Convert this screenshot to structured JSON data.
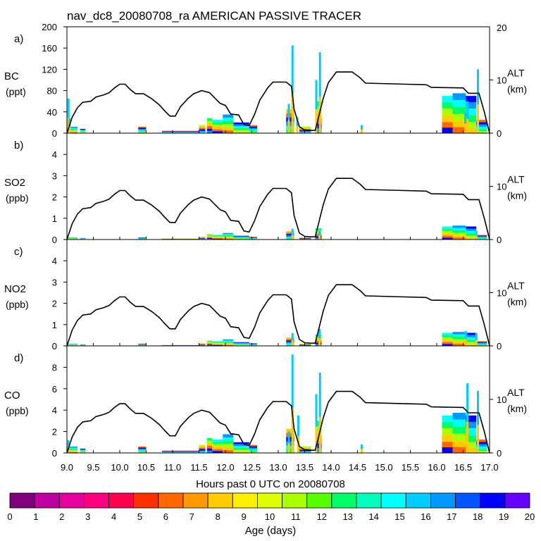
{
  "title": "nav_dc8_20080708_ra AMERICAN PASSIVE TRACER",
  "xlabel": "Hours past 0 UTC on 20080708",
  "x_ticks": [
    "9.0",
    "9.5",
    "10.0",
    "10.5",
    "11.0",
    "11.5",
    "12.0",
    "12.5",
    "13.0",
    "13.5",
    "14.0",
    "14.5",
    "15.0",
    "15.5",
    "16.0",
    "16.5",
    "17.0"
  ],
  "x_range": [
    9.0,
    17.0
  ],
  "colorbar": {
    "label": "Age (days)",
    "ticks": [
      "0",
      "1",
      "2",
      "3",
      "4",
      "5",
      "6",
      "7",
      "8",
      "9",
      "10",
      "11",
      "12",
      "13",
      "14",
      "15",
      "16",
      "17",
      "18",
      "19",
      "20"
    ],
    "colors": [
      "#7f007f",
      "#bf00a0",
      "#e600a0",
      "#ff0080",
      "#ff0050",
      "#ff3000",
      "#ff6600",
      "#ff9900",
      "#ffcc00",
      "#ffee00",
      "#ddff00",
      "#aaff00",
      "#55ff00",
      "#00ff66",
      "#00ffbb",
      "#00ffff",
      "#00ccff",
      "#0099ff",
      "#0055ff",
      "#0000ff",
      "#6600ff"
    ]
  },
  "alt_axis": {
    "label": "ALT",
    "unit": "(km)"
  },
  "altitude_km": [
    [
      9.0,
      0
    ],
    [
      9.05,
      1.5
    ],
    [
      9.1,
      3
    ],
    [
      9.2,
      4.8
    ],
    [
      9.3,
      5.8
    ],
    [
      9.45,
      6
    ],
    [
      9.55,
      6.8
    ],
    [
      9.7,
      7.2
    ],
    [
      9.8,
      7.6
    ],
    [
      9.9,
      8.5
    ],
    [
      10.0,
      9.2
    ],
    [
      10.1,
      9.2
    ],
    [
      10.2,
      8.2
    ],
    [
      10.3,
      7.4
    ],
    [
      10.45,
      7.4
    ],
    [
      10.6,
      6.5
    ],
    [
      10.75,
      5.3
    ],
    [
      10.85,
      4.2
    ],
    [
      10.95,
      3.2
    ],
    [
      11.05,
      3.2
    ],
    [
      11.15,
      5
    ],
    [
      11.3,
      6.6
    ],
    [
      11.4,
      7.4
    ],
    [
      11.55,
      8
    ],
    [
      11.7,
      7.6
    ],
    [
      11.8,
      6.6
    ],
    [
      11.9,
      5.6
    ],
    [
      12.0,
      5.2
    ],
    [
      12.1,
      3.6
    ],
    [
      12.25,
      3.4
    ],
    [
      12.35,
      1.6
    ],
    [
      12.45,
      1.4
    ],
    [
      12.55,
      3.5
    ],
    [
      12.65,
      6.2
    ],
    [
      12.8,
      8.5
    ],
    [
      12.9,
      9.6
    ],
    [
      13.15,
      9.6
    ],
    [
      13.25,
      8.8
    ],
    [
      13.3,
      4.5
    ],
    [
      13.4,
      1.2
    ],
    [
      13.5,
      0.6
    ],
    [
      13.6,
      0.5
    ],
    [
      13.7,
      0.5
    ],
    [
      13.75,
      2.5
    ],
    [
      13.85,
      6.5
    ],
    [
      13.95,
      9.5
    ],
    [
      14.1,
      11.5
    ],
    [
      14.4,
      11.5
    ],
    [
      14.55,
      10.4
    ],
    [
      14.65,
      9.4
    ],
    [
      15.4,
      9.2
    ],
    [
      15.8,
      9.1
    ],
    [
      15.9,
      8.6
    ],
    [
      16.5,
      8.5
    ],
    [
      16.6,
      7.5
    ],
    [
      16.8,
      7.5
    ],
    [
      16.9,
      4
    ],
    [
      17.0,
      0
    ]
  ],
  "panels": [
    {
      "letter": "a)",
      "species": "BC",
      "unit": "(ppt)",
      "ymax": 200,
      "yticks": [
        0,
        40,
        80,
        120,
        160,
        200
      ],
      "spikes": [
        [
          9.03,
          65
        ],
        [
          9.05,
          28
        ],
        [
          13.2,
          55
        ],
        [
          13.27,
          165
        ],
        [
          13.36,
          30
        ],
        [
          13.72,
          100
        ],
        [
          13.79,
          152
        ],
        [
          14.58,
          15
        ],
        [
          16.54,
          40
        ],
        [
          16.58,
          60
        ],
        [
          16.78,
          120
        ]
      ]
    },
    {
      "letter": "b)",
      "species": "SO2",
      "unit": "(ppb)",
      "ymax": 5,
      "yticks": [
        0,
        1,
        2,
        3,
        4
      ],
      "spikes": [
        [
          13.27,
          0.5
        ],
        [
          13.78,
          0.42
        ],
        [
          16.75,
          0.4
        ]
      ]
    },
    {
      "letter": "c)",
      "species": "NO2",
      "unit": "(ppb)",
      "ymax": 5,
      "yticks": [
        0,
        1,
        2,
        3,
        4
      ],
      "spikes": [
        [
          13.27,
          0.6
        ],
        [
          13.78,
          0.8
        ],
        [
          16.55,
          0.7
        ],
        [
          16.75,
          0.6
        ]
      ]
    },
    {
      "letter": "d)",
      "species": "CO",
      "unit": "(ppb)",
      "ymax": 10,
      "yticks": [
        0,
        2,
        4,
        6,
        8
      ],
      "spikes": [
        [
          9.03,
          1.2
        ],
        [
          13.2,
          2
        ],
        [
          13.27,
          9.2
        ],
        [
          13.38,
          3.5
        ],
        [
          13.72,
          5.5
        ],
        [
          13.79,
          7.5
        ],
        [
          14.58,
          0.8
        ],
        [
          16.58,
          6.5
        ],
        [
          16.78,
          5.8
        ]
      ]
    }
  ],
  "bands": [
    {
      "x0": 9.0,
      "x1": 9.2,
      "bc": 12
    },
    {
      "x0": 9.25,
      "x1": 9.35,
      "bc": 8
    },
    {
      "x0": 10.35,
      "x1": 10.5,
      "bc": 12
    },
    {
      "x0": 10.8,
      "x1": 11.5,
      "bc": 5
    },
    {
      "x0": 11.5,
      "x1": 11.62,
      "bc": 15
    },
    {
      "x0": 11.65,
      "x1": 11.75,
      "bc": 28
    },
    {
      "x0": 11.75,
      "x1": 11.95,
      "bc": 25
    },
    {
      "x0": 11.95,
      "x1": 12.15,
      "bc": 35
    },
    {
      "x0": 12.15,
      "x1": 12.45,
      "bc": 20
    },
    {
      "x0": 12.45,
      "x1": 12.6,
      "bc": 15
    },
    {
      "x0": 13.15,
      "x1": 13.3,
      "bc": 45
    },
    {
      "x0": 13.4,
      "x1": 13.62,
      "bc": 12
    },
    {
      "x0": 13.7,
      "x1": 13.82,
      "bc": 60
    },
    {
      "x0": 16.1,
      "x1": 16.3,
      "bc": 70
    },
    {
      "x0": 16.3,
      "x1": 16.55,
      "bc": 75
    },
    {
      "x0": 16.55,
      "x1": 16.75,
      "bc": 70
    },
    {
      "x0": 16.75,
      "x1": 16.95,
      "bc": 25
    }
  ]
}
